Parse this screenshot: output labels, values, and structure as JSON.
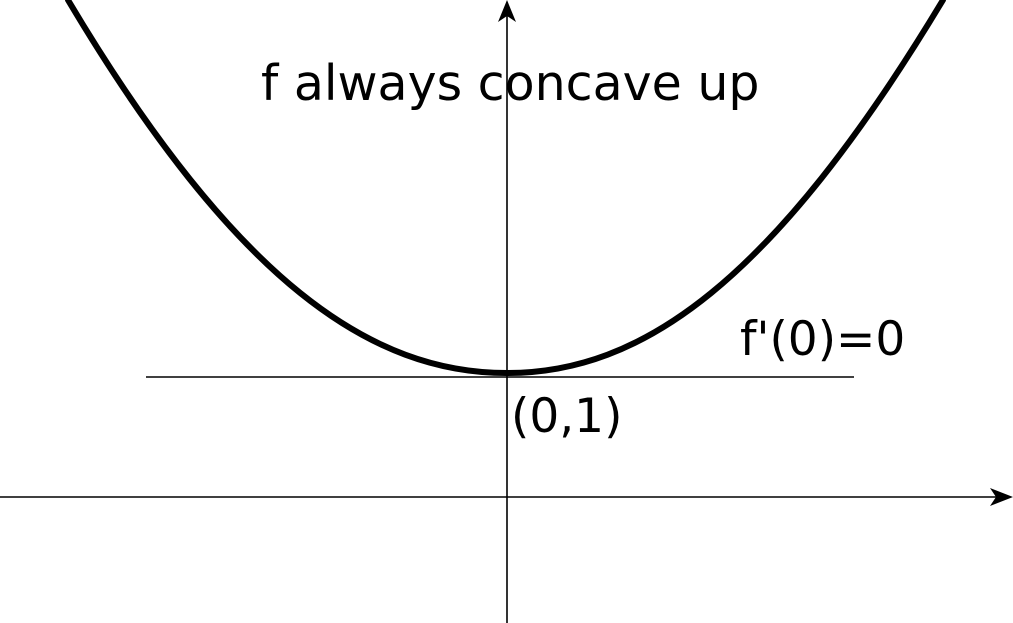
{
  "diagram": {
    "title": "f always concave up",
    "tangent_label": "f'(0)=0",
    "point_label": "(0,1)"
  },
  "colors": {
    "ink": "#000000",
    "background": "#ffffff"
  }
}
